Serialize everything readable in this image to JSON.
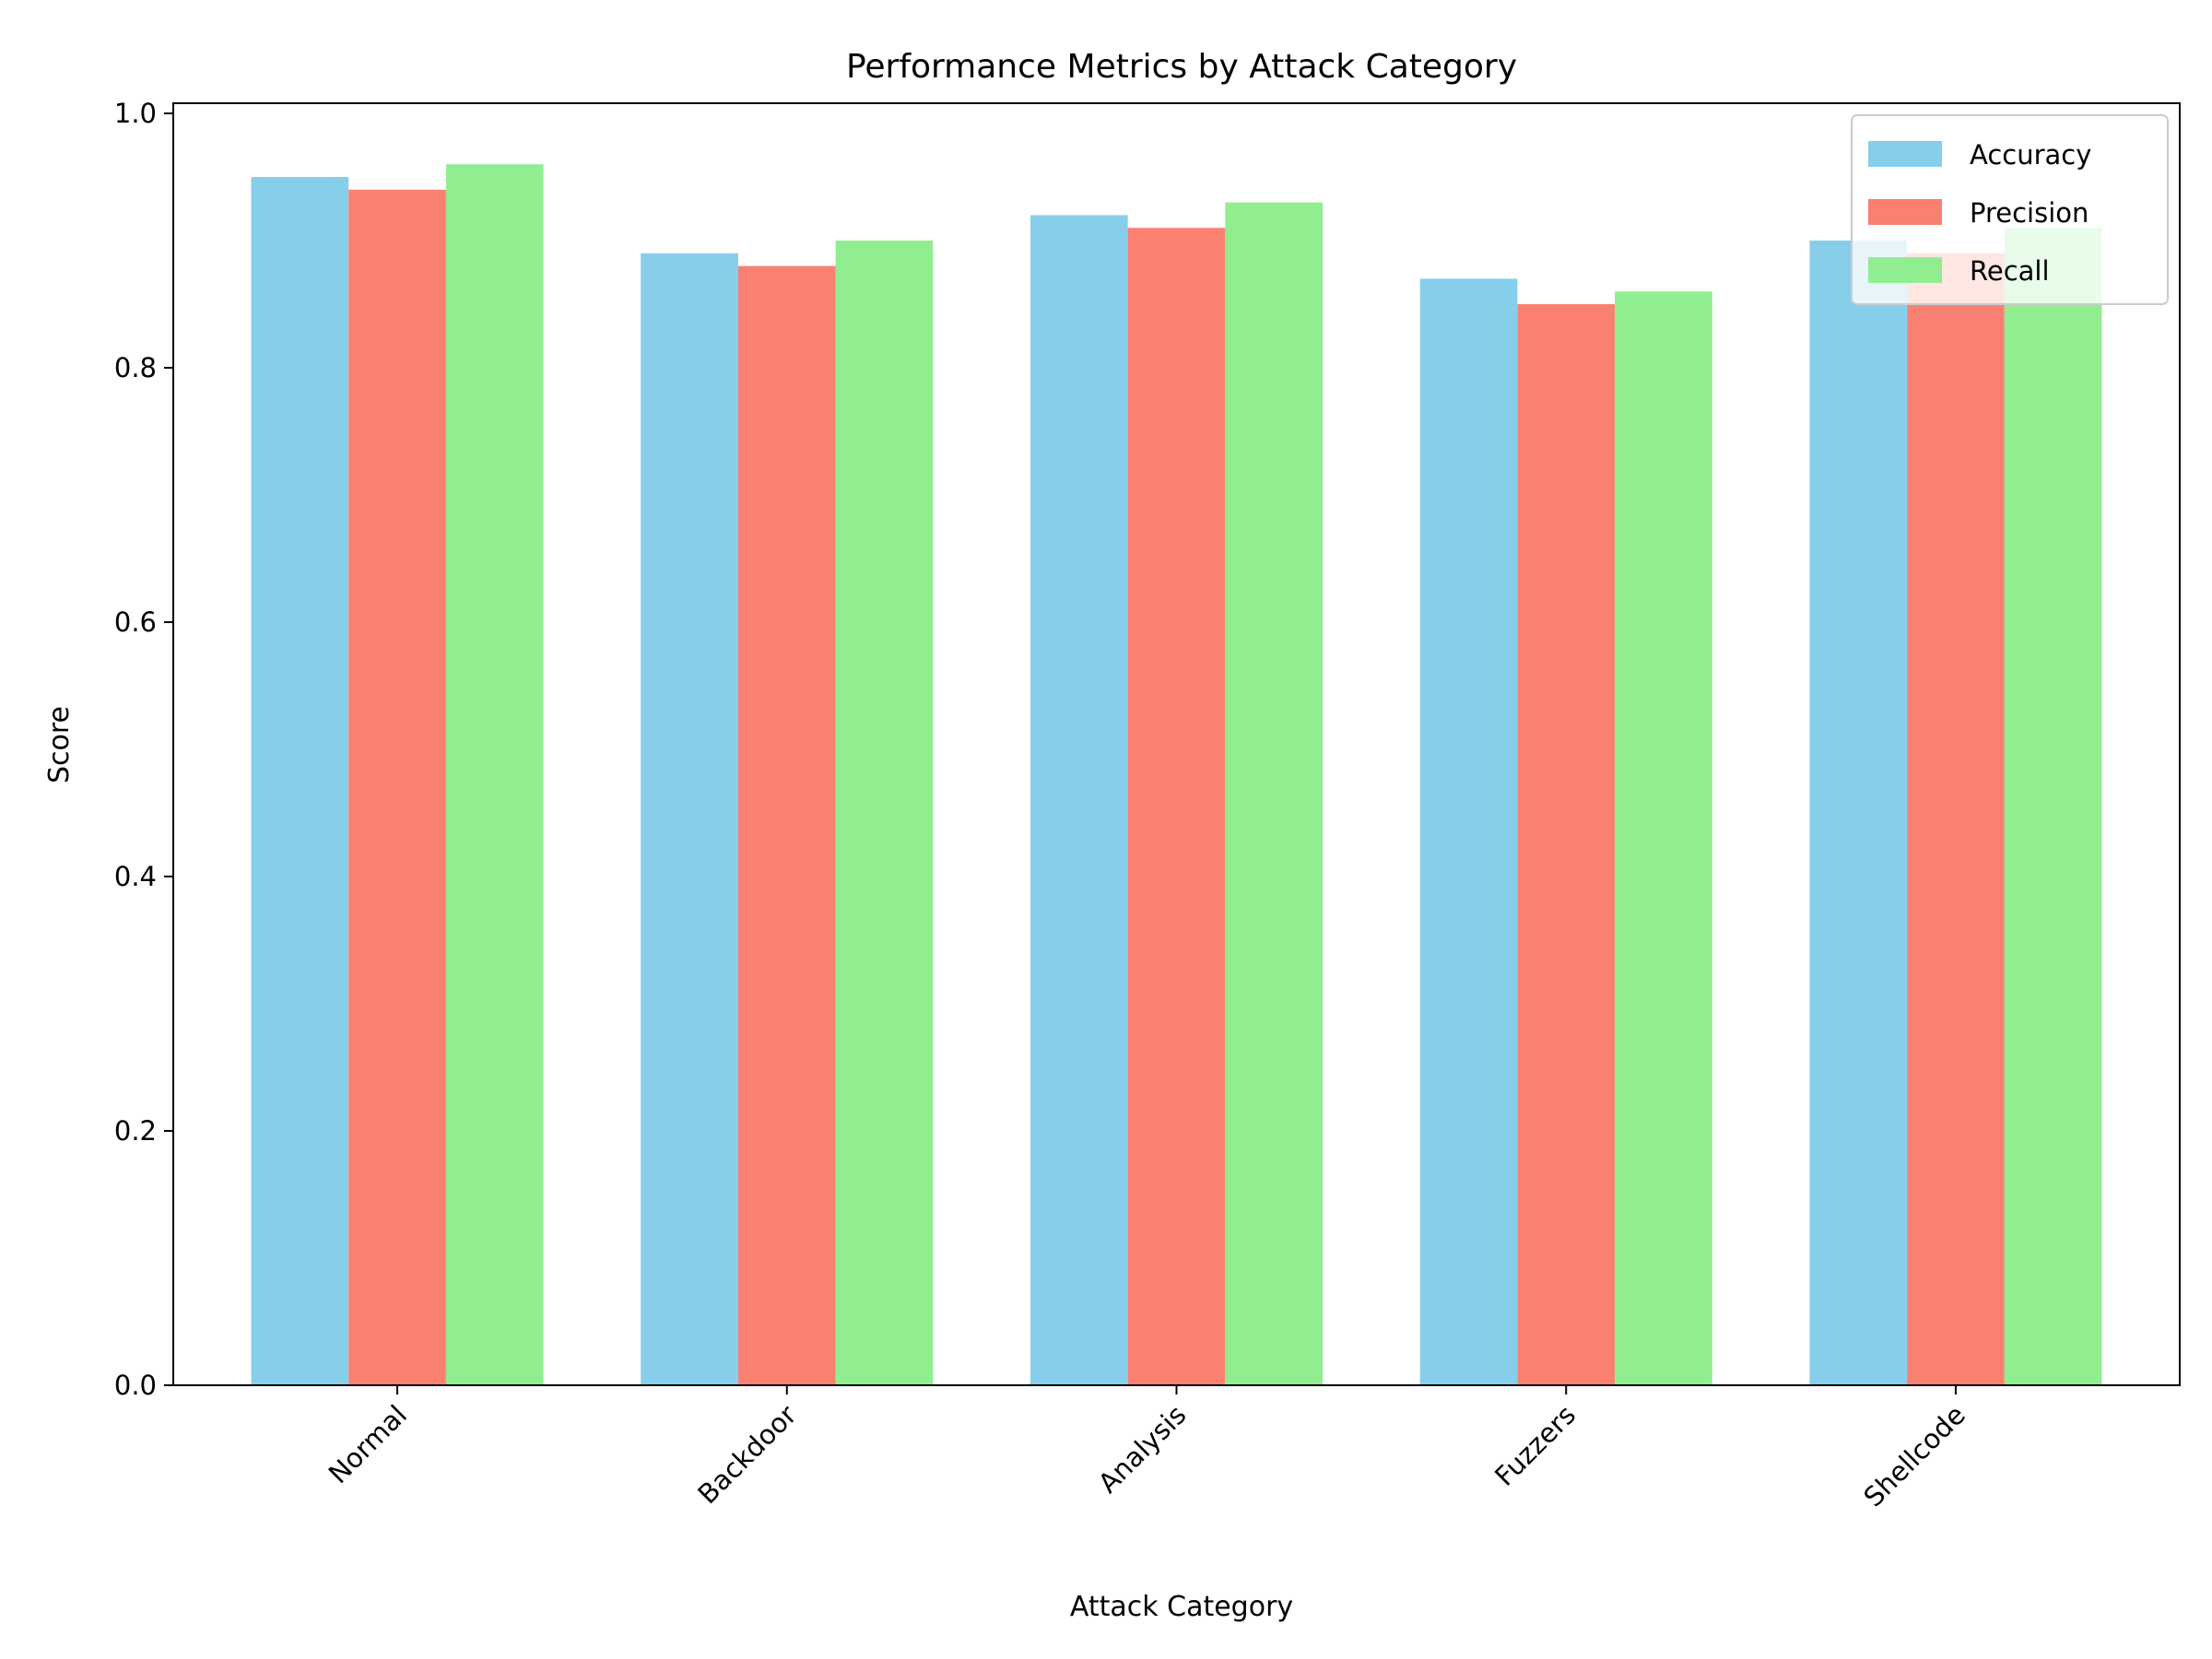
{
  "chart_data": {
    "type": "bar",
    "title": "Performance Metrics by Attack Category",
    "xlabel": "Attack Category",
    "ylabel": "Score",
    "categories": [
      "Normal",
      "Backdoor",
      "Analysis",
      "Fuzzers",
      "Shellcode"
    ],
    "series": [
      {
        "name": "Accuracy",
        "color": "#87CEEB",
        "values": [
          0.95,
          0.89,
          0.92,
          0.87,
          0.9
        ]
      },
      {
        "name": "Precision",
        "color": "#FA8072",
        "values": [
          0.94,
          0.88,
          0.91,
          0.85,
          0.89
        ]
      },
      {
        "name": "Recall",
        "color": "#90EE90",
        "values": [
          0.96,
          0.9,
          0.93,
          0.86,
          0.91
        ]
      }
    ],
    "ylim": [
      0,
      1.008
    ],
    "yticks": [
      0.0,
      0.2,
      0.4,
      0.6,
      0.8,
      1.0
    ],
    "ytick_labels": [
      "0.0",
      "0.2",
      "0.4",
      "0.6",
      "0.8",
      "1.0"
    ],
    "grid": false,
    "legend_position": "top-right"
  }
}
